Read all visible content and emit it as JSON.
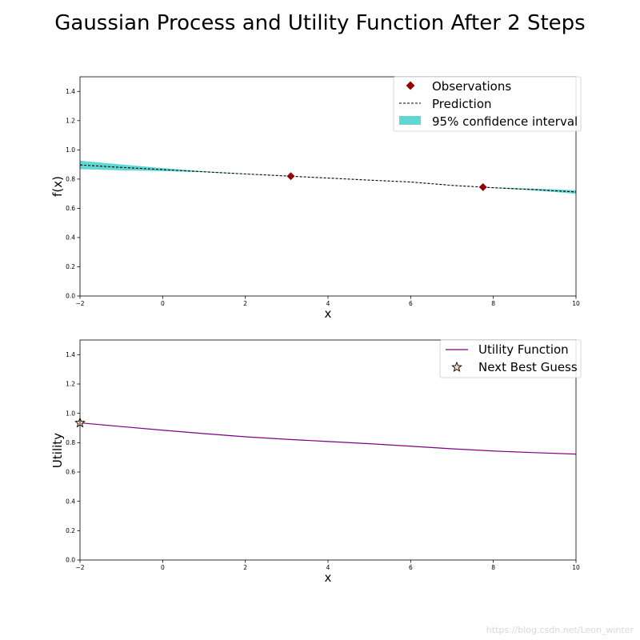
{
  "figure": {
    "title": "Gaussian Process and Utility Function After 2 Steps",
    "watermark": "https://blog.csdn.net/Leon_winter"
  },
  "colors": {
    "observation": "#990000",
    "prediction": "#000000",
    "confidence": "#63d6d3",
    "utility": "#800080",
    "next_guess_edge": "#000000",
    "next_guess_face": "#ffd8b8"
  },
  "chart_data": [
    {
      "type": "line",
      "title": "",
      "xlabel": "x",
      "ylabel": "f(x)",
      "xlim": [
        -2,
        10
      ],
      "ylim": [
        0.0,
        1.5
      ],
      "xticks": [
        -2,
        0,
        2,
        4,
        6,
        8,
        10
      ],
      "xtick_labels": [
        "−2",
        "0",
        "2",
        "4",
        "6",
        "8",
        "10"
      ],
      "yticks": [
        0.0,
        0.2,
        0.4,
        0.6,
        0.8,
        1.0,
        1.2,
        1.4
      ],
      "ytick_labels": [
        "0.0",
        "0.2",
        "0.4",
        "0.6",
        "0.8",
        "1.0",
        "1.2",
        "1.4"
      ],
      "grid": false,
      "legend_position": "top-right",
      "legend": [
        "Observations",
        "Prediction",
        "95% confidence interval"
      ],
      "observations": {
        "x": [
          3.1,
          7.75
        ],
        "y": [
          0.82,
          0.745
        ]
      },
      "prediction": {
        "x": [
          -2,
          -1,
          0,
          1,
          2,
          3.1,
          4,
          5,
          6,
          7,
          7.75,
          8,
          9,
          10
        ],
        "y": [
          0.897,
          0.88,
          0.865,
          0.85,
          0.835,
          0.82,
          0.807,
          0.793,
          0.78,
          0.757,
          0.745,
          0.741,
          0.728,
          0.712
        ],
        "lower": [
          0.868,
          0.86,
          0.855,
          0.847,
          0.834,
          0.82,
          0.807,
          0.793,
          0.78,
          0.756,
          0.745,
          0.739,
          0.722,
          0.7
        ],
        "upper": [
          0.926,
          0.9,
          0.875,
          0.853,
          0.836,
          0.82,
          0.807,
          0.793,
          0.78,
          0.758,
          0.745,
          0.743,
          0.734,
          0.724
        ]
      }
    },
    {
      "type": "line",
      "title": "",
      "xlabel": "x",
      "ylabel": "Utility",
      "xlim": [
        -2,
        10
      ],
      "ylim": [
        0.0,
        1.5
      ],
      "xticks": [
        -2,
        0,
        2,
        4,
        6,
        8,
        10
      ],
      "xtick_labels": [
        "−2",
        "0",
        "2",
        "4",
        "6",
        "8",
        "10"
      ],
      "yticks": [
        0.0,
        0.2,
        0.4,
        0.6,
        0.8,
        1.0,
        1.2,
        1.4
      ],
      "ytick_labels": [
        "0.0",
        "0.2",
        "0.4",
        "0.6",
        "0.8",
        "1.0",
        "1.2",
        "1.4"
      ],
      "grid": false,
      "legend_position": "top-right",
      "legend": [
        "Utility Function",
        "Next Best Guess"
      ],
      "utility": {
        "x": [
          -2,
          -1,
          0,
          1,
          2,
          3,
          4,
          5,
          6,
          7,
          8,
          9,
          10
        ],
        "y": [
          0.935,
          0.91,
          0.885,
          0.862,
          0.84,
          0.823,
          0.808,
          0.793,
          0.776,
          0.758,
          0.743,
          0.732,
          0.722
        ]
      },
      "next_best_guess": {
        "x": -2,
        "y": 0.935
      }
    }
  ]
}
